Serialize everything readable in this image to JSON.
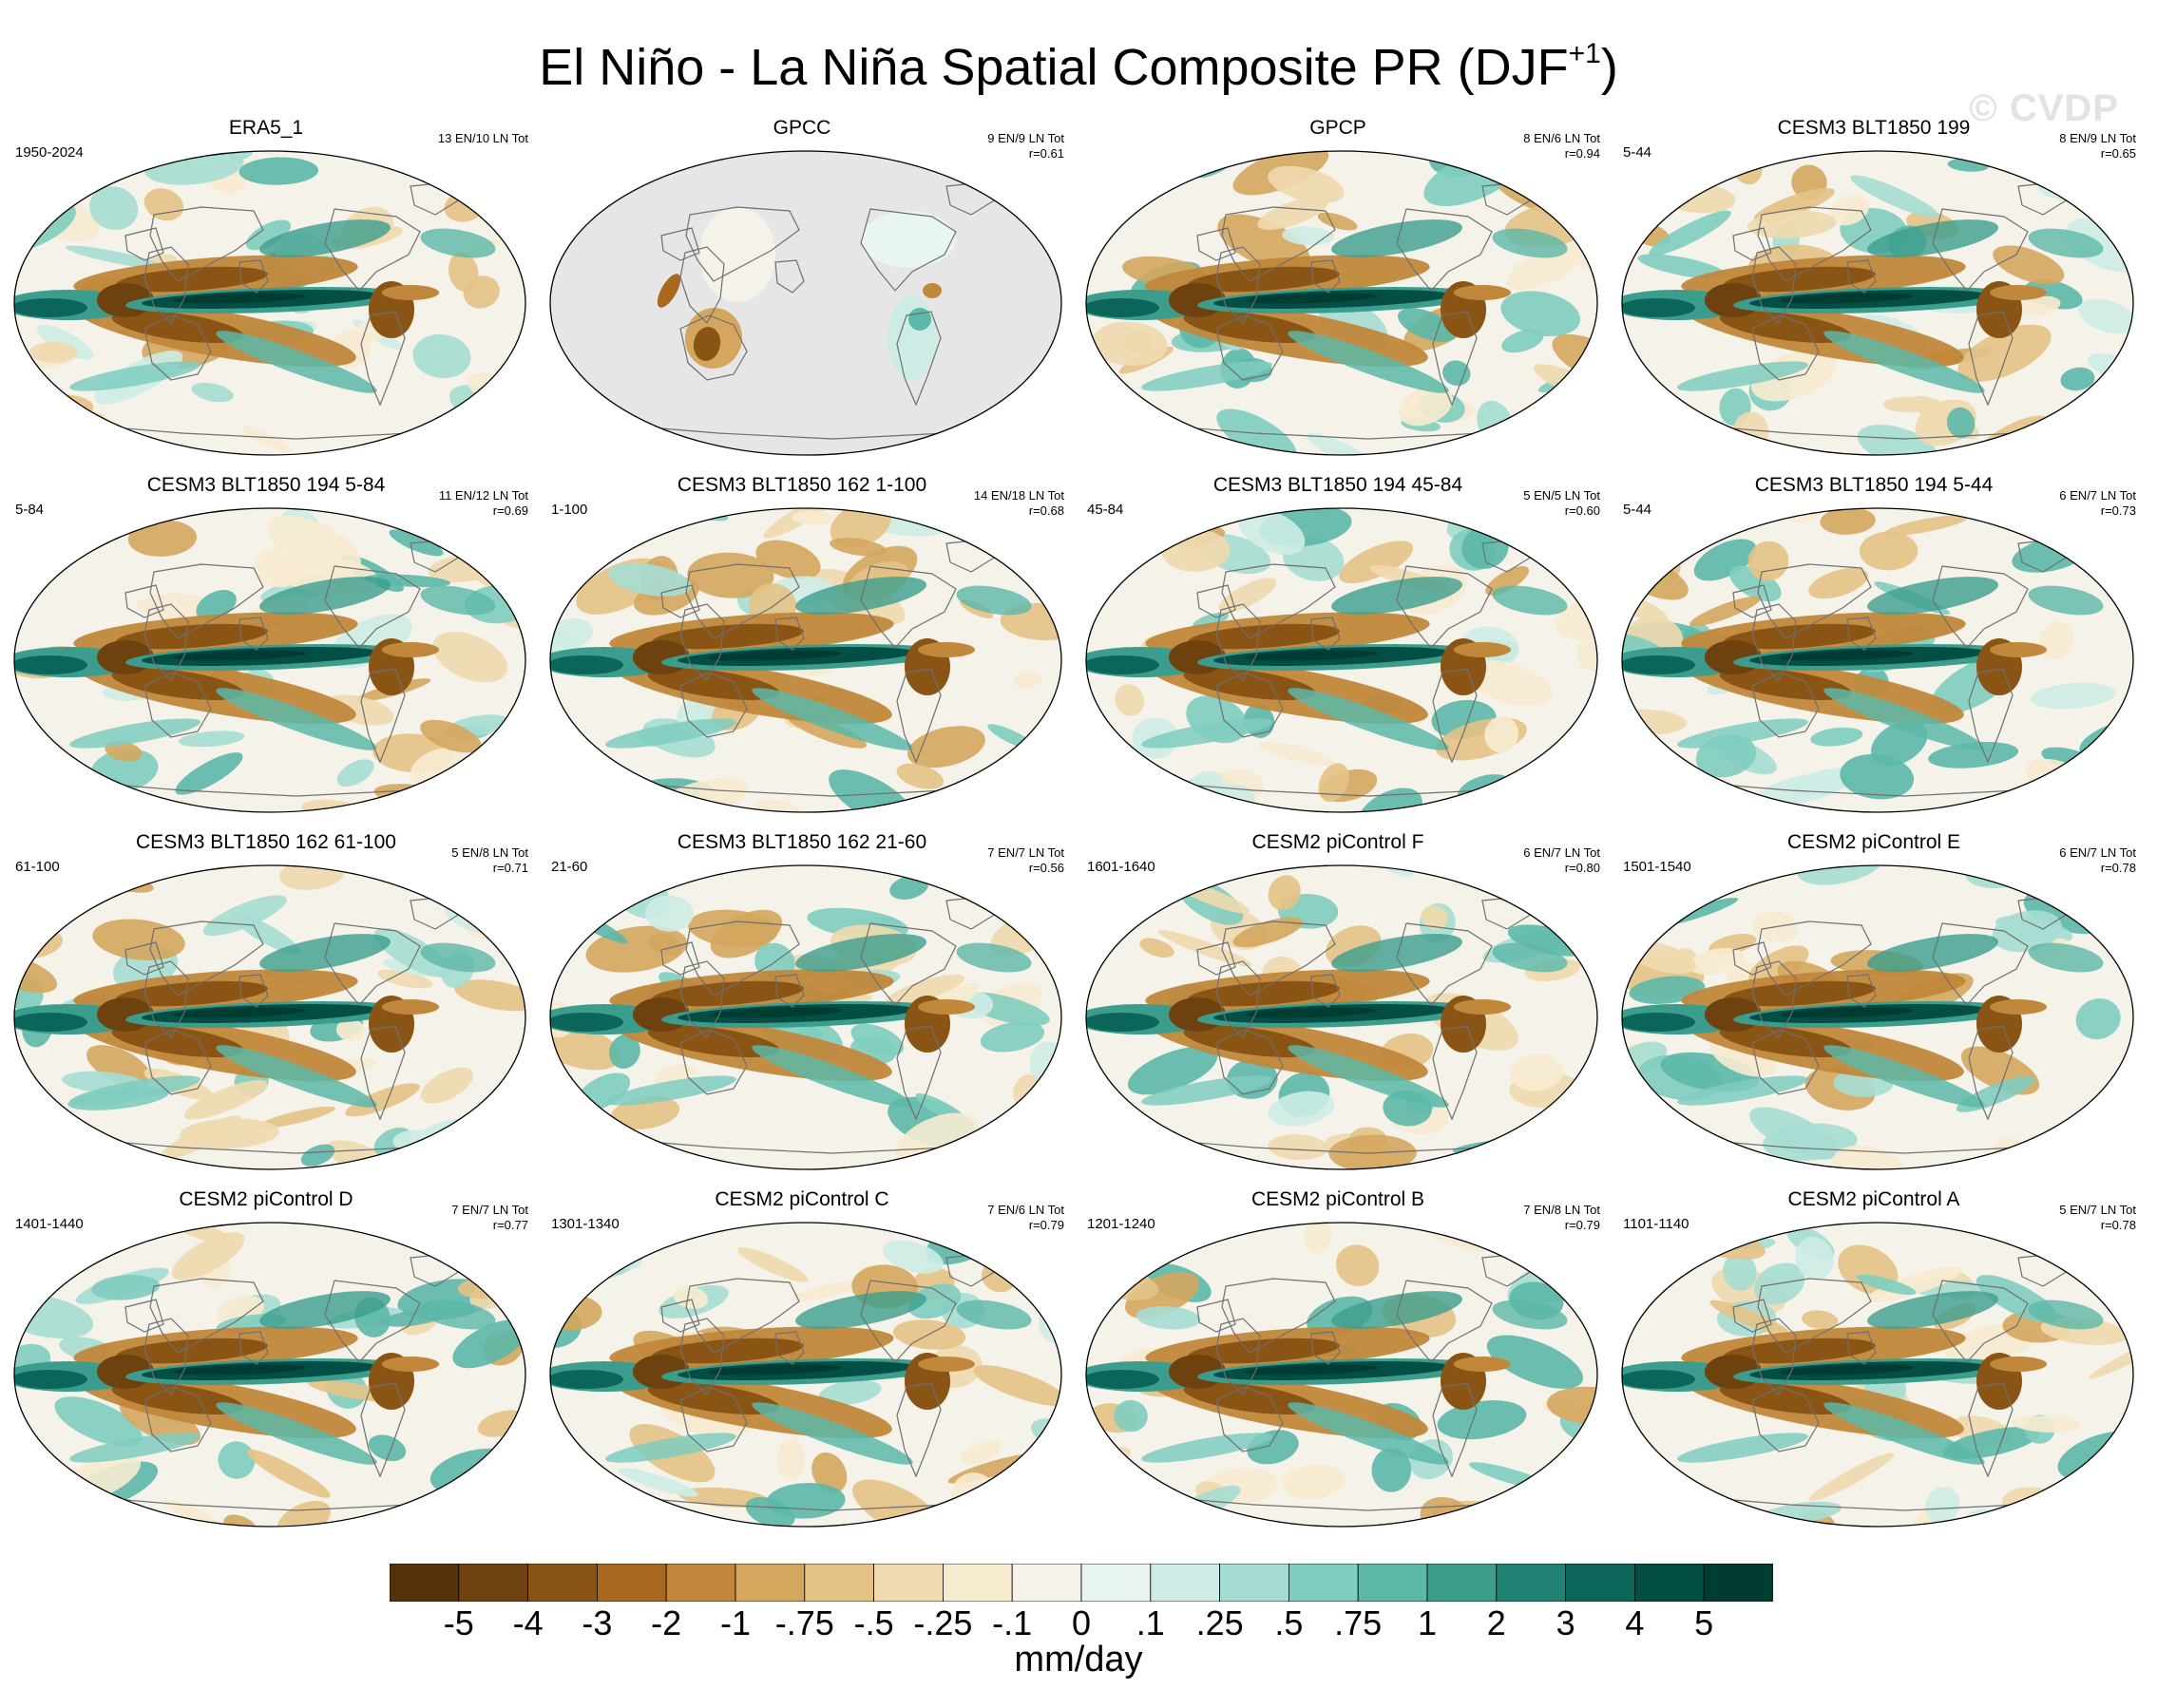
{
  "chart_data": {
    "type": "heatmap",
    "title": {
      "main": "El Niño - La Niña Spatial Composite PR (DJF",
      "superscript": "+1",
      "close": ")"
    },
    "watermark": "© CVDP",
    "projection": "robinson-like global maps, Pacific-centered",
    "panels": [
      {
        "name": "ERA5_1",
        "period": "1950-2024",
        "events": "13 EN/10 LN Tot",
        "r": ""
      },
      {
        "name": "GPCC",
        "period": "",
        "events": "9 EN/9 LN Tot",
        "r": "r=0.61"
      },
      {
        "name": "GPCP",
        "period": "",
        "events": "8 EN/6 LN Tot",
        "r": "r=0.94"
      },
      {
        "name": "CESM3 BLT1850 199",
        "period": "5-44",
        "events": "8 EN/9 LN Tot",
        "r": "r=0.65"
      },
      {
        "name": "CESM3 BLT1850 194 5-84",
        "period": "5-84",
        "events": "11 EN/12 LN Tot",
        "r": "r=0.69"
      },
      {
        "name": "CESM3 BLT1850 162 1-100",
        "period": "1-100",
        "events": "14 EN/18 LN Tot",
        "r": "r=0.68"
      },
      {
        "name": "CESM3 BLT1850 194 45-84",
        "period": "45-84",
        "events": "5 EN/5 LN Tot",
        "r": "r=0.60"
      },
      {
        "name": "CESM3 BLT1850 194 5-44",
        "period": "5-44",
        "events": "6 EN/7 LN Tot",
        "r": "r=0.73"
      },
      {
        "name": "CESM3 BLT1850 162 61-100",
        "period": "61-100",
        "events": "5 EN/8 LN Tot",
        "r": "r=0.71"
      },
      {
        "name": "CESM3 BLT1850 162 21-60",
        "period": "21-60",
        "events": "7 EN/7 LN Tot",
        "r": "r=0.56"
      },
      {
        "name": "CESM2 piControl F",
        "period": "1601-1640",
        "events": "6 EN/7 LN Tot",
        "r": "r=0.80"
      },
      {
        "name": "CESM2 piControl E",
        "period": "1501-1540",
        "events": "6 EN/7 LN Tot",
        "r": "r=0.78"
      },
      {
        "name": "CESM2 piControl D",
        "period": "1401-1440",
        "events": "7 EN/7 LN Tot",
        "r": "r=0.77"
      },
      {
        "name": "CESM2 piControl C",
        "period": "1301-1340",
        "events": "7 EN/6 LN Tot",
        "r": "r=0.79"
      },
      {
        "name": "CESM2 piControl B",
        "period": "1201-1240",
        "events": "7 EN/8 LN Tot",
        "r": "r=0.79"
      },
      {
        "name": "CESM2 piControl A",
        "period": "1101-1140",
        "events": "5 EN/7 LN Tot",
        "r": "r=0.78"
      }
    ],
    "colorbar": {
      "levels": [
        "-5",
        "-4",
        "-3",
        "-2",
        "-1",
        "-.75",
        "-.5",
        "-.25",
        "-.1",
        "0",
        ".1",
        ".25",
        ".5",
        ".75",
        "1",
        "2",
        "3",
        "4",
        "5"
      ],
      "colors": [
        "#563209",
        "#6e420e",
        "#8a5414",
        "#a8691f",
        "#c1873b",
        "#d4a65e",
        "#e4c286",
        "#efd9ae",
        "#f7ebd0",
        "#f5f2ea",
        "#e9f5f2",
        "#cdece5",
        "#a6ddd3",
        "#7fcdbf",
        "#5cb8a8",
        "#3c9d8d",
        "#1f8173",
        "#0b655a",
        "#034f45",
        "#003c31"
      ],
      "units": "mm/day"
    }
  }
}
